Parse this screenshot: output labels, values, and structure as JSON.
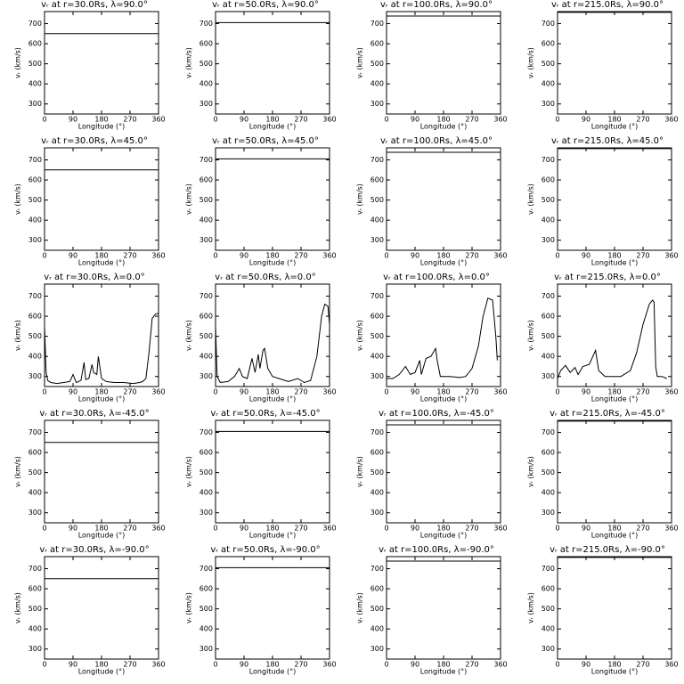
{
  "chart_data": [
    {
      "type": "line",
      "title": "vᵣ at r=30.0Rs,  λ=90.0°",
      "xlabel": "Longitude (°)",
      "ylabel": "vᵣ (km/s)",
      "x": [
        0,
        360
      ],
      "values": [
        650,
        650
      ],
      "color": "#000000",
      "xlim": [
        0,
        360
      ],
      "ylim": [
        250,
        760
      ],
      "xticks": [
        0,
        90,
        180,
        270,
        360
      ],
      "yticks": [
        300,
        400,
        500,
        600,
        700
      ]
    },
    {
      "type": "line",
      "title": "vᵣ at r=50.0Rs,  λ=90.0°",
      "xlabel": "Longitude (°)",
      "ylabel": "vᵣ (km/s)",
      "x": [
        0,
        360
      ],
      "values": [
        705,
        705
      ],
      "color": "#000000",
      "xlim": [
        0,
        360
      ],
      "ylim": [
        250,
        760
      ],
      "xticks": [
        0,
        90,
        180,
        270,
        360
      ],
      "yticks": [
        300,
        400,
        500,
        600,
        700
      ]
    },
    {
      "type": "line",
      "title": "vᵣ at r=100.0Rs,  λ=90.0°",
      "xlabel": "Longitude (°)",
      "ylabel": "vᵣ (km/s)",
      "x": [
        0,
        360
      ],
      "values": [
        738,
        738
      ],
      "color": "#000000",
      "xlim": [
        0,
        360
      ],
      "ylim": [
        250,
        760
      ],
      "xticks": [
        0,
        90,
        180,
        270,
        360
      ],
      "yticks": [
        300,
        400,
        500,
        600,
        700
      ]
    },
    {
      "type": "line",
      "title": "vᵣ at r=215.0Rs,  λ=90.0°",
      "xlabel": "Longitude (°)",
      "ylabel": "vᵣ (km/s)",
      "x": [
        0,
        360
      ],
      "values": [
        756,
        756
      ],
      "color": "#000000",
      "xlim": [
        0,
        360
      ],
      "ylim": [
        250,
        760
      ],
      "xticks": [
        0,
        90,
        180,
        270,
        360
      ],
      "yticks": [
        300,
        400,
        500,
        600,
        700
      ]
    },
    {
      "type": "line",
      "title": "vᵣ at r=30.0Rs,  λ=45.0°",
      "xlabel": "Longitude (°)",
      "ylabel": "vᵣ (km/s)",
      "x": [
        0,
        360
      ],
      "values": [
        650,
        650
      ],
      "color": "#000000",
      "xlim": [
        0,
        360
      ],
      "ylim": [
        250,
        760
      ],
      "xticks": [
        0,
        90,
        180,
        270,
        360
      ],
      "yticks": [
        300,
        400,
        500,
        600,
        700
      ]
    },
    {
      "type": "line",
      "title": "vᵣ at r=50.0Rs,  λ=45.0°",
      "xlabel": "Longitude (°)",
      "ylabel": "vᵣ (km/s)",
      "x": [
        0,
        360
      ],
      "values": [
        705,
        705
      ],
      "color": "#000000",
      "xlim": [
        0,
        360
      ],
      "ylim": [
        250,
        760
      ],
      "xticks": [
        0,
        90,
        180,
        270,
        360
      ],
      "yticks": [
        300,
        400,
        500,
        600,
        700
      ]
    },
    {
      "type": "line",
      "title": "vᵣ at r=100.0Rs,  λ=45.0°",
      "xlabel": "Longitude (°)",
      "ylabel": "vᵣ (km/s)",
      "x": [
        0,
        360
      ],
      "values": [
        738,
        738
      ],
      "color": "#000000",
      "xlim": [
        0,
        360
      ],
      "ylim": [
        250,
        760
      ],
      "xticks": [
        0,
        90,
        180,
        270,
        360
      ],
      "yticks": [
        300,
        400,
        500,
        600,
        700
      ]
    },
    {
      "type": "line",
      "title": "vᵣ at r=215.0Rs,  λ=45.0°",
      "xlabel": "Longitude (°)",
      "ylabel": "vᵣ (km/s)",
      "x": [
        0,
        360
      ],
      "values": [
        756,
        756
      ],
      "color": "#000000",
      "xlim": [
        0,
        360
      ],
      "ylim": [
        250,
        760
      ],
      "xticks": [
        0,
        90,
        180,
        270,
        360
      ],
      "yticks": [
        300,
        400,
        500,
        600,
        700
      ]
    },
    {
      "type": "line",
      "title": "vᵣ at r=30.0Rs,  λ=0.0°",
      "xlabel": "Longitude (°)",
      "ylabel": "vᵣ (km/s)",
      "x": [
        0,
        5,
        10,
        20,
        40,
        60,
        80,
        90,
        100,
        115,
        125,
        130,
        140,
        150,
        155,
        165,
        170,
        180,
        195,
        220,
        250,
        280,
        300,
        310,
        320,
        330,
        340,
        350,
        360
      ],
      "values": [
        550,
        320,
        280,
        270,
        265,
        270,
        275,
        310,
        270,
        280,
        370,
        285,
        290,
        360,
        320,
        310,
        400,
        290,
        275,
        270,
        270,
        265,
        270,
        275,
        290,
        420,
        590,
        610,
        615
      ],
      "color": "#000000",
      "xlim": [
        0,
        360
      ],
      "ylim": [
        250,
        760
      ],
      "xticks": [
        0,
        90,
        180,
        270,
        360
      ],
      "yticks": [
        300,
        400,
        500,
        600,
        700
      ]
    },
    {
      "type": "line",
      "title": "vᵣ at r=50.0Rs,  λ=0.0°",
      "xlabel": "Longitude (°)",
      "ylabel": "vᵣ (km/s)",
      "x": [
        0,
        5,
        15,
        40,
        60,
        75,
        85,
        100,
        115,
        125,
        135,
        140,
        150,
        155,
        165,
        180,
        200,
        230,
        260,
        280,
        300,
        320,
        335,
        345,
        355,
        360
      ],
      "values": [
        550,
        300,
        270,
        275,
        300,
        340,
        300,
        290,
        390,
        320,
        410,
        340,
        430,
        440,
        340,
        300,
        290,
        275,
        290,
        270,
        280,
        400,
        600,
        660,
        650,
        560
      ],
      "color": "#000000",
      "xlim": [
        0,
        360
      ],
      "ylim": [
        250,
        760
      ],
      "xticks": [
        0,
        90,
        180,
        270,
        360
      ],
      "yticks": [
        300,
        400,
        500,
        600,
        700
      ]
    },
    {
      "type": "line",
      "title": "vᵣ at r=100.0Rs,  λ=0.0°",
      "xlabel": "Longitude (°)",
      "ylabel": "vᵣ (km/s)",
      "x": [
        0,
        20,
        40,
        60,
        75,
        90,
        105,
        110,
        125,
        140,
        155,
        160,
        170,
        200,
        230,
        250,
        270,
        290,
        305,
        320,
        335,
        345,
        350
      ],
      "values": [
        290,
        290,
        310,
        350,
        310,
        320,
        380,
        310,
        390,
        400,
        440,
        380,
        300,
        300,
        295,
        300,
        340,
        450,
        600,
        690,
        680,
        500,
        380
      ],
      "color": "#000000",
      "xlim": [
        0,
        360
      ],
      "ylim": [
        250,
        760
      ],
      "xticks": [
        0,
        90,
        180,
        270,
        360
      ],
      "yticks": [
        300,
        400,
        500,
        600,
        700
      ]
    },
    {
      "type": "line",
      "title": "vᵣ at r=215.0Rs,  λ=0.0°",
      "xlabel": "Longitude (°)",
      "ylabel": "vᵣ (km/s)",
      "x": [
        0,
        10,
        25,
        40,
        55,
        65,
        80,
        100,
        120,
        130,
        150,
        200,
        230,
        250,
        270,
        290,
        300,
        305,
        310,
        315,
        330,
        345
      ],
      "values": [
        290,
        330,
        355,
        320,
        345,
        310,
        350,
        360,
        430,
        330,
        300,
        300,
        330,
        420,
        560,
        660,
        680,
        670,
        350,
        300,
        300,
        290
      ],
      "color": "#000000",
      "xlim": [
        0,
        360
      ],
      "ylim": [
        250,
        760
      ],
      "xticks": [
        0,
        90,
        180,
        270,
        360
      ],
      "yticks": [
        300,
        400,
        500,
        600,
        700
      ]
    },
    {
      "type": "line",
      "title": "vᵣ at r=30.0Rs,  λ=-45.0°",
      "xlabel": "Longitude (°)",
      "ylabel": "vᵣ (km/s)",
      "x": [
        0,
        360
      ],
      "values": [
        650,
        650
      ],
      "color": "#000000",
      "xlim": [
        0,
        360
      ],
      "ylim": [
        250,
        760
      ],
      "xticks": [
        0,
        90,
        180,
        270,
        360
      ],
      "yticks": [
        300,
        400,
        500,
        600,
        700
      ]
    },
    {
      "type": "line",
      "title": "vᵣ at r=50.0Rs,  λ=-45.0°",
      "xlabel": "Longitude (°)",
      "ylabel": "vᵣ (km/s)",
      "x": [
        0,
        360
      ],
      "values": [
        705,
        705
      ],
      "color": "#000000",
      "xlim": [
        0,
        360
      ],
      "ylim": [
        250,
        760
      ],
      "xticks": [
        0,
        90,
        180,
        270,
        360
      ],
      "yticks": [
        300,
        400,
        500,
        600,
        700
      ]
    },
    {
      "type": "line",
      "title": "vᵣ at r=100.0Rs,  λ=-45.0°",
      "xlabel": "Longitude (°)",
      "ylabel": "vᵣ (km/s)",
      "x": [
        0,
        360
      ],
      "values": [
        738,
        738
      ],
      "color": "#000000",
      "xlim": [
        0,
        360
      ],
      "ylim": [
        250,
        760
      ],
      "xticks": [
        0,
        90,
        180,
        270,
        360
      ],
      "yticks": [
        300,
        400,
        500,
        600,
        700
      ]
    },
    {
      "type": "line",
      "title": "vᵣ at r=215.0Rs,  λ=-45.0°",
      "xlabel": "Longitude (°)",
      "ylabel": "vᵣ (km/s)",
      "x": [
        0,
        360
      ],
      "values": [
        756,
        756
      ],
      "color": "#000000",
      "xlim": [
        0,
        360
      ],
      "ylim": [
        250,
        760
      ],
      "xticks": [
        0,
        90,
        180,
        270,
        360
      ],
      "yticks": [
        300,
        400,
        500,
        600,
        700
      ]
    },
    {
      "type": "line",
      "title": "vᵣ at r=30.0Rs,  λ=-90.0°",
      "xlabel": "Longitude (°)",
      "ylabel": "vᵣ (km/s)",
      "x": [
        0,
        360
      ],
      "values": [
        650,
        650
      ],
      "color": "#000000",
      "xlim": [
        0,
        360
      ],
      "ylim": [
        250,
        760
      ],
      "xticks": [
        0,
        90,
        180,
        270,
        360
      ],
      "yticks": [
        300,
        400,
        500,
        600,
        700
      ]
    },
    {
      "type": "line",
      "title": "vᵣ at r=50.0Rs,  λ=-90.0°",
      "xlabel": "Longitude (°)",
      "ylabel": "vᵣ (km/s)",
      "x": [
        0,
        360
      ],
      "values": [
        705,
        705
      ],
      "color": "#000000",
      "xlim": [
        0,
        360
      ],
      "ylim": [
        250,
        760
      ],
      "xticks": [
        0,
        90,
        180,
        270,
        360
      ],
      "yticks": [
        300,
        400,
        500,
        600,
        700
      ]
    },
    {
      "type": "line",
      "title": "vᵣ at r=100.0Rs,  λ=-90.0°",
      "xlabel": "Longitude (°)",
      "ylabel": "vᵣ (km/s)",
      "x": [
        0,
        360
      ],
      "values": [
        738,
        738
      ],
      "color": "#000000",
      "xlim": [
        0,
        360
      ],
      "ylim": [
        250,
        760
      ],
      "xticks": [
        0,
        90,
        180,
        270,
        360
      ],
      "yticks": [
        300,
        400,
        500,
        600,
        700
      ]
    },
    {
      "type": "line",
      "title": "vᵣ at r=215.0Rs,  λ=-90.0°",
      "xlabel": "Longitude (°)",
      "ylabel": "vᵣ (km/s)",
      "x": [
        0,
        360
      ],
      "values": [
        756,
        756
      ],
      "color": "#000000",
      "xlim": [
        0,
        360
      ],
      "ylim": [
        250,
        760
      ],
      "xticks": [
        0,
        90,
        180,
        270,
        360
      ],
      "yticks": [
        300,
        400,
        500,
        600,
        700
      ]
    }
  ]
}
